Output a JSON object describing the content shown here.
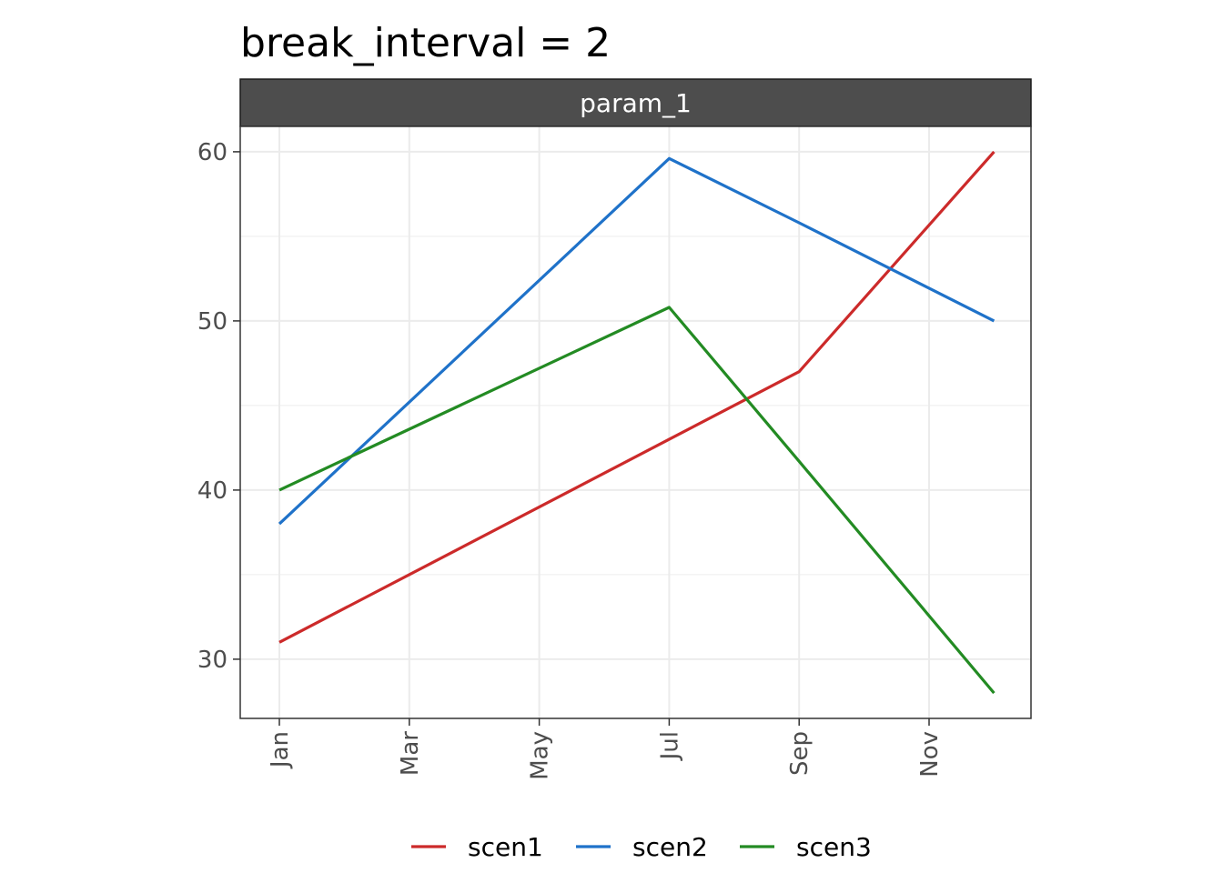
{
  "chart_data": {
    "type": "line",
    "title": "break_interval = 2",
    "facet_label": "param_1",
    "xlabel": "",
    "ylabel": "",
    "x": [
      "Jan",
      "Jul",
      "Sep",
      "Dec"
    ],
    "x_ticks": [
      "Jan",
      "Mar",
      "May",
      "Jul",
      "Sep",
      "Nov"
    ],
    "y_ticks": [
      30,
      40,
      50,
      60
    ],
    "ylim": [
      26.5,
      61.5
    ],
    "grid": true,
    "legend_position": "bottom",
    "series": [
      {
        "name": "scen1",
        "color": "#cc2a2a",
        "values": [
          31,
          43,
          47,
          60
        ]
      },
      {
        "name": "scen2",
        "color": "#1f72c9",
        "values": [
          38,
          59.6,
          55.8,
          50
        ]
      },
      {
        "name": "scen3",
        "color": "#238b23",
        "values": [
          40,
          50.8,
          41.7,
          28
        ]
      }
    ]
  }
}
